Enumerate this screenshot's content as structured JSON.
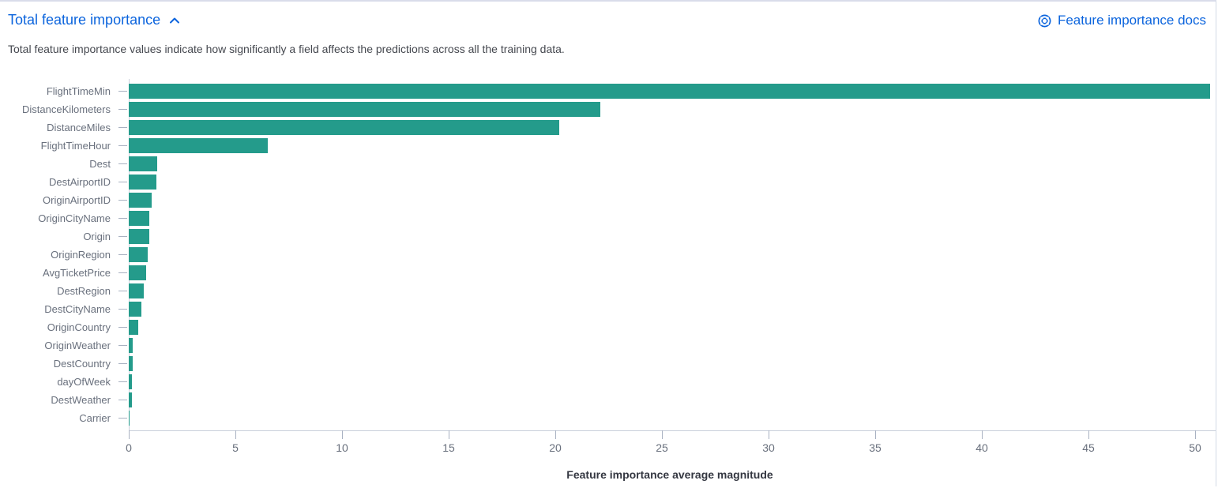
{
  "header": {
    "title": "Total feature importance",
    "collapse_icon": "chevron-up-icon",
    "docs_link_label": "Feature importance docs",
    "docs_link_icon": "help-docs-icon"
  },
  "description": "Total feature importance values indicate how significantly a field affects the predictions across all the training data.",
  "colors": {
    "bar": "#249b8b",
    "link_blue": "#0b64dd",
    "axis_line": "#c9cfdb",
    "tick_mark": "#a9b2c2",
    "axis_text": "#69707d",
    "body_text": "#45484f",
    "axis_title_text": "#343741"
  },
  "chart_data": {
    "type": "bar",
    "orientation": "horizontal",
    "title": "",
    "xlabel": "Feature importance average magnitude",
    "ylabel": "",
    "categories": [
      "FlightTimeMin",
      "DistanceKilometers",
      "DistanceMiles",
      "FlightTimeHour",
      "Dest",
      "DestAirportID",
      "OriginAirportID",
      "OriginCityName",
      "Origin",
      "OriginRegion",
      "AvgTicketPrice",
      "DestRegion",
      "DestCityName",
      "OriginCountry",
      "OriginWeather",
      "DestCountry",
      "dayOfWeek",
      "DestWeather",
      "Carrier"
    ],
    "values": [
      50.7,
      22.1,
      20.2,
      6.5,
      1.32,
      1.28,
      1.07,
      0.96,
      0.95,
      0.89,
      0.83,
      0.7,
      0.58,
      0.44,
      0.2,
      0.18,
      0.16,
      0.15,
      0.05
    ],
    "xticks": [
      0,
      5,
      10,
      15,
      20,
      25,
      30,
      35,
      40,
      45,
      50
    ],
    "xlim": [
      0,
      50.7
    ],
    "grid": false,
    "legend": false
  }
}
